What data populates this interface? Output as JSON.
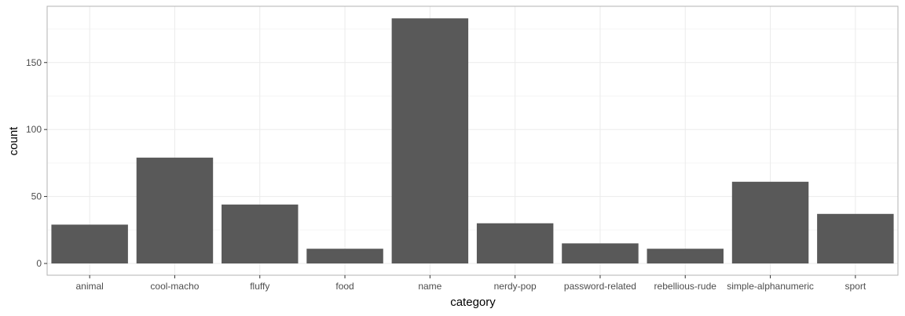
{
  "chart_data": {
    "type": "bar",
    "xlabel": "category",
    "ylabel": "count",
    "categories": [
      "animal",
      "cool-macho",
      "fluffy",
      "food",
      "name",
      "nerdy-pop",
      "password-related",
      "rebellious-rude",
      "simple-alphanumeric",
      "sport"
    ],
    "values": [
      29,
      79,
      44,
      11,
      183,
      30,
      15,
      11,
      61,
      37
    ],
    "ylim": [
      0,
      192
    ],
    "yticks": [
      0,
      50,
      100,
      150
    ],
    "grid": true,
    "bar_color": "#595959",
    "panel_border_color": "#b3b3b3",
    "grid_major_color": "#ebebeb",
    "grid_minor_color": "#f5f5f5"
  }
}
